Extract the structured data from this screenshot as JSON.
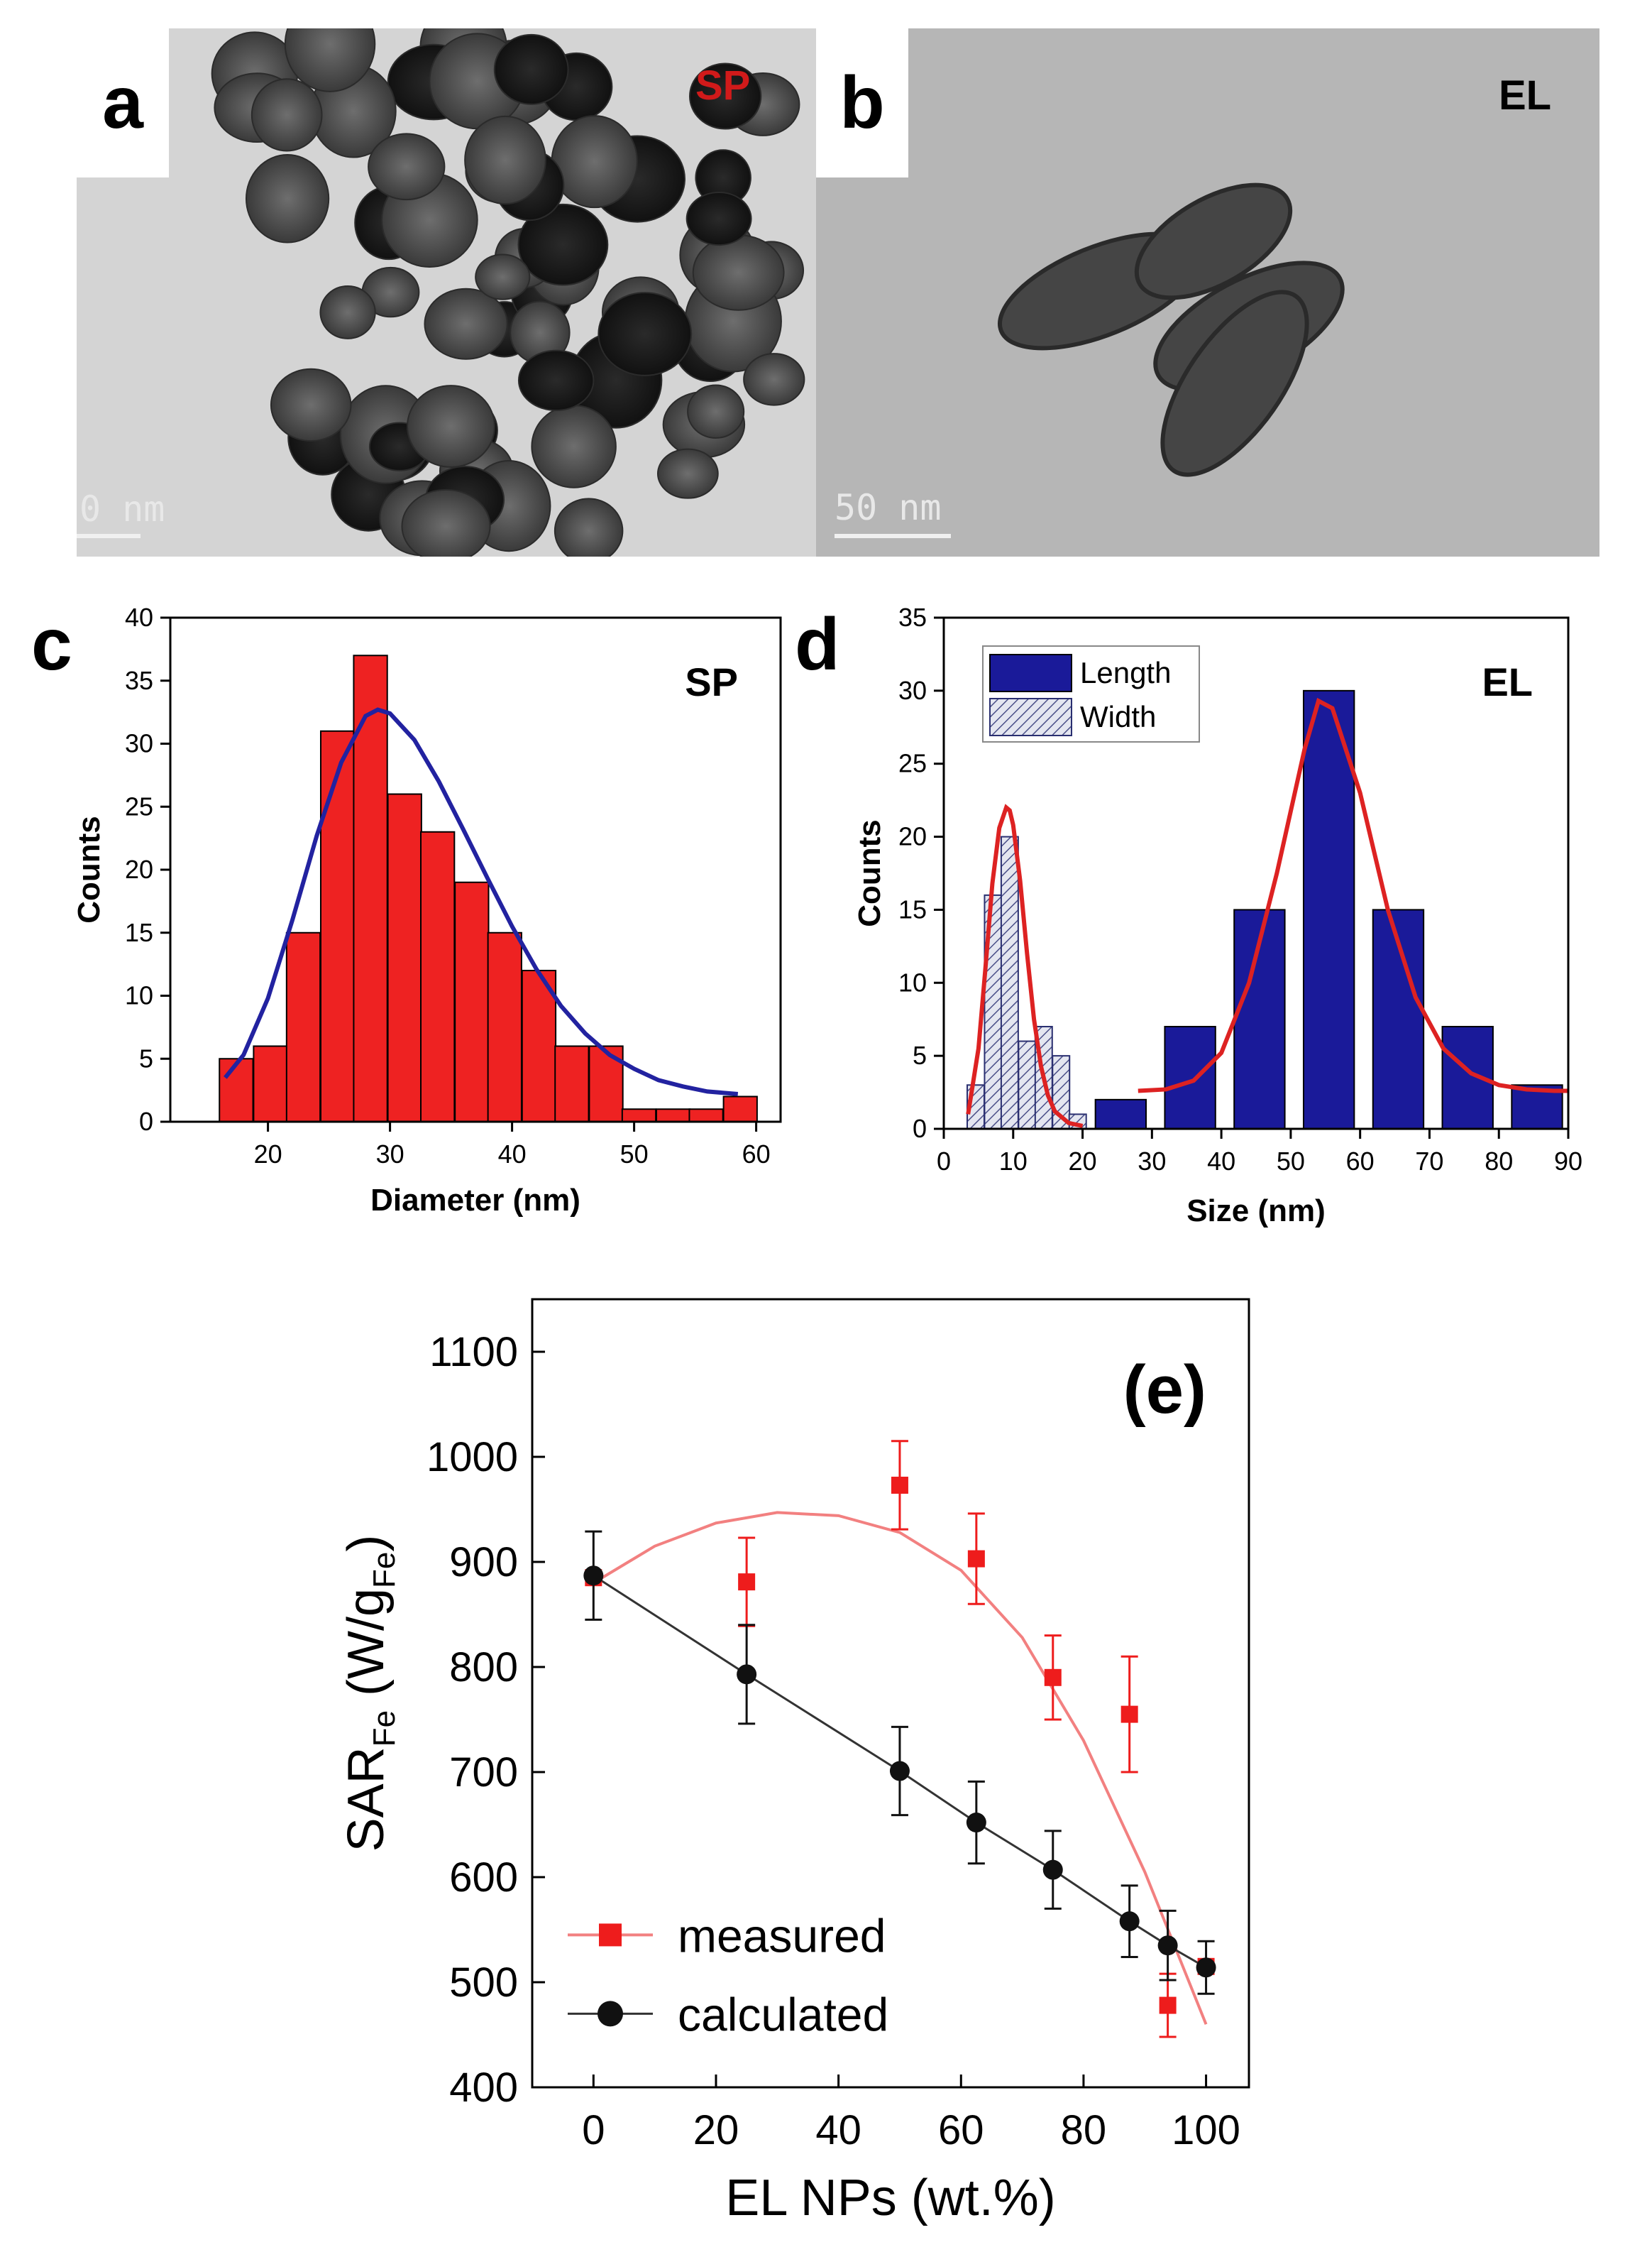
{
  "panels": {
    "a": {
      "letter": "a",
      "label": "SP",
      "label_color": "#d11a1a",
      "scale_text": "0 nm"
    },
    "b": {
      "letter": "b",
      "label": "EL",
      "scale_text": "50 nm"
    },
    "c": {
      "letter": "c"
    },
    "d": {
      "letter": "d"
    }
  },
  "chart_data": [
    {
      "id": "c",
      "type": "bar",
      "title": "SP",
      "xlabel": "Diameter (nm)",
      "ylabel": "Counts",
      "xlim": [
        12,
        62
      ],
      "ylim": [
        0,
        40
      ],
      "xticks": [
        20,
        30,
        40,
        50,
        60
      ],
      "yticks": [
        0,
        5,
        10,
        15,
        20,
        25,
        30,
        35,
        40
      ],
      "bar_width": 2.75,
      "bar_color": "#ee2222",
      "x": [
        17.4,
        20.2,
        22.9,
        25.7,
        28.4,
        31.2,
        33.9,
        36.7,
        39.4,
        42.2,
        44.9,
        47.7,
        50.4,
        53.2,
        55.9,
        58.7
      ],
      "values": [
        5,
        6,
        15,
        31,
        37,
        26,
        23,
        19,
        15,
        12,
        6,
        6,
        1,
        1,
        1,
        2
      ],
      "fit": {
        "color": "#2222a0",
        "x": [
          16.5,
          18,
          20,
          22,
          24,
          26,
          28,
          29,
          30,
          32,
          34,
          36,
          38,
          40,
          42,
          44,
          46,
          48,
          50,
          52,
          54,
          56,
          58.5
        ],
        "y": [
          3.5,
          5.3,
          9.8,
          16.0,
          22.7,
          28.5,
          32.2,
          32.7,
          32.4,
          30.3,
          27.0,
          23.2,
          19.3,
          15.5,
          12.1,
          9.2,
          7.0,
          5.3,
          4.2,
          3.3,
          2.8,
          2.4,
          2.2
        ]
      }
    },
    {
      "id": "d",
      "type": "bar",
      "title": "EL",
      "xlabel": "Size (nm)",
      "ylabel": "Counts",
      "xlim": [
        0,
        90
      ],
      "ylim": [
        0,
        35
      ],
      "xticks": [
        0,
        10,
        20,
        30,
        40,
        50,
        60,
        70,
        80,
        90
      ],
      "yticks": [
        0,
        5,
        10,
        15,
        20,
        25,
        30,
        35
      ],
      "legend": [
        "Length",
        "Width"
      ],
      "series": [
        {
          "name": "Length",
          "color": "#1a1a99",
          "bar_width": 7.3,
          "x": [
            25.5,
            35.5,
            45.5,
            55.5,
            65.5,
            75.5,
            85.5
          ],
          "values": [
            2,
            7,
            15,
            30,
            15,
            7,
            3
          ]
        },
        {
          "name": "Width",
          "color": "#c9cce0",
          "hatch": true,
          "bar_width": 2.45,
          "x": [
            4.6,
            7.1,
            9.5,
            12.0,
            14.4,
            16.9,
            19.3
          ],
          "values": [
            3,
            16,
            20,
            6,
            7,
            5,
            1
          ]
        }
      ],
      "fits": [
        {
          "color": "#dd2222",
          "x": [
            3.5,
            5,
            6,
            7,
            8,
            9,
            9.5,
            10,
            11,
            12,
            13,
            14,
            15,
            16,
            18,
            20
          ],
          "y": [
            1.0,
            5.5,
            11.0,
            16.8,
            20.6,
            22.0,
            21.8,
            20.8,
            17.0,
            12.0,
            7.5,
            4.3,
            2.3,
            1.2,
            0.4,
            0.2
          ]
        },
        {
          "color": "#dd2222",
          "x": [
            28,
            32,
            36,
            40,
            44,
            48,
            52,
            54,
            56,
            60,
            64,
            68,
            72,
            76,
            80,
            84,
            88,
            90
          ],
          "y": [
            2.6,
            2.7,
            3.3,
            5.2,
            10.0,
            17.5,
            26.0,
            29.3,
            28.8,
            23.0,
            15.0,
            9.0,
            5.5,
            3.8,
            3.0,
            2.7,
            2.6,
            2.6
          ]
        }
      ]
    },
    {
      "id": "e",
      "type": "scatter",
      "title": "(e)",
      "xlabel": "EL NPs (wt.%)",
      "ylabel_main": "SAR",
      "ylabel_sub": "Fe",
      "ylabel_unit_open": "(W/g",
      "ylabel_unit_sub": "Fe",
      "ylabel_unit_close": ")",
      "xlim": [
        -10,
        107
      ],
      "ylim": [
        400,
        1150
      ],
      "xticks": [
        0,
        20,
        40,
        60,
        80,
        100
      ],
      "yticks": [
        400,
        500,
        600,
        700,
        800,
        900,
        1000,
        1100
      ],
      "series": [
        {
          "name": "measured",
          "color": "#ee1c1c",
          "marker": "square",
          "x": [
            0,
            25,
            50,
            62.5,
            75,
            87.5,
            93.75,
            100
          ],
          "y": [
            885,
            881,
            973,
            903,
            790,
            755,
            478,
            515
          ],
          "err": [
            0,
            42,
            42,
            43,
            40,
            55,
            30,
            0
          ]
        },
        {
          "name": "calculated",
          "color": "#111111",
          "marker": "circle",
          "x": [
            0,
            25,
            50,
            62.5,
            75,
            87.5,
            93.75,
            100
          ],
          "y": [
            887,
            793,
            701,
            652,
            607,
            558,
            535,
            514
          ],
          "err": [
            42,
            47,
            42,
            39,
            37,
            34,
            33,
            25
          ]
        }
      ],
      "fit_measured": {
        "x": [
          0,
          10,
          20,
          30,
          40,
          50,
          60,
          70,
          80,
          90,
          100
        ],
        "y": [
          880,
          915,
          937,
          947,
          944,
          928,
          892,
          828,
          730,
          605,
          460
        ]
      }
    }
  ]
}
